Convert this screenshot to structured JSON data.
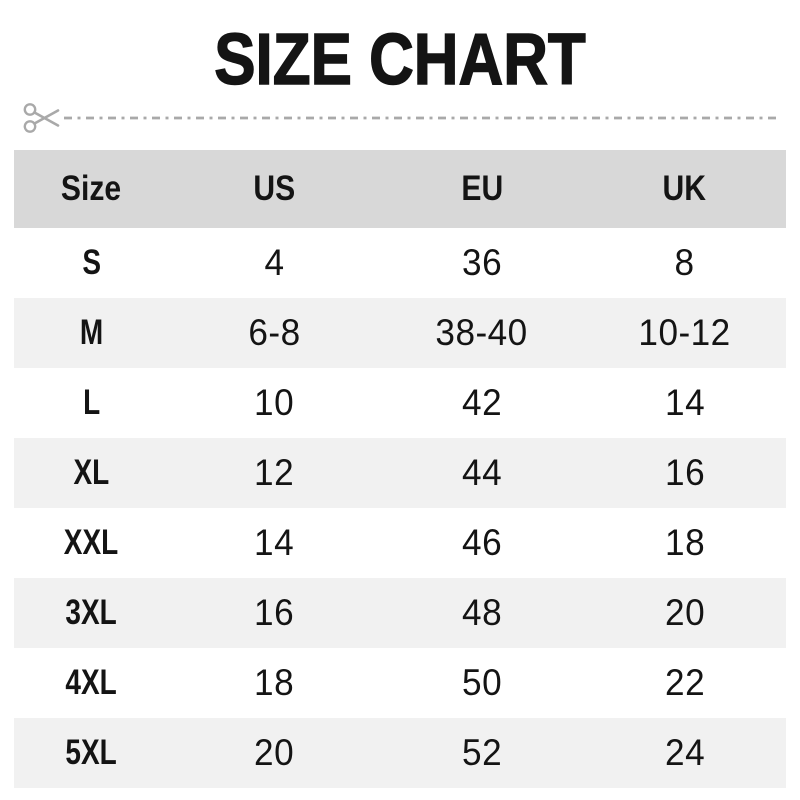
{
  "page": {
    "title": "SIZE CHART"
  },
  "cut_line": {
    "icon": "scissors",
    "style": "dash-dot"
  },
  "table": {
    "headers": [
      "Size",
      "US",
      "EU",
      "UK"
    ],
    "rows": [
      [
        "S",
        "4",
        "36",
        "8"
      ],
      [
        "M",
        "6-8",
        "38-40",
        "10-12"
      ],
      [
        "L",
        "10",
        "42",
        "14"
      ],
      [
        "XL",
        "12",
        "44",
        "16"
      ],
      [
        "XXL",
        "14",
        "46",
        "18"
      ],
      [
        "3XL",
        "16",
        "48",
        "20"
      ],
      [
        "4XL",
        "18",
        "50",
        "22"
      ],
      [
        "5XL",
        "20",
        "52",
        "24"
      ]
    ]
  },
  "colors": {
    "header_bg": "#d8d8d8",
    "row_alt_bg": "#f1f1f1",
    "cut_line": "#a9a9a9",
    "text": "#141414"
  }
}
